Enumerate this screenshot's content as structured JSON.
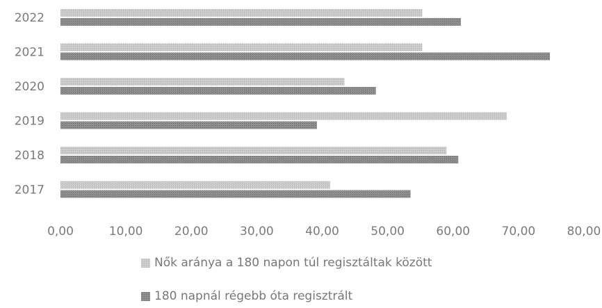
{
  "chart_data": {
    "type": "bar",
    "orientation": "horizontal",
    "title": "",
    "xlabel": "",
    "ylabel": "",
    "categories": [
      "2022",
      "2021",
      "2020",
      "2019",
      "2018",
      "2017"
    ],
    "series": [
      {
        "name": "Nők aránya a 180 napon túl regisztáltak között",
        "color": "#c4c4c4",
        "values": [
          55.3,
          55.3,
          43.4,
          68.2,
          59.0,
          41.2
        ]
      },
      {
        "name": "180 napnál régebb óta regisztrált",
        "color": "#8a8a8a",
        "values": [
          61.2,
          74.8,
          48.2,
          39.2,
          60.8,
          53.5
        ]
      }
    ],
    "xlim": [
      0,
      80
    ],
    "xticks": [
      "0,00",
      "10,00",
      "20,00",
      "30,00",
      "40,00",
      "50,00",
      "60,00",
      "70,00",
      "80,00"
    ],
    "grid": false,
    "legend_position": "bottom"
  }
}
